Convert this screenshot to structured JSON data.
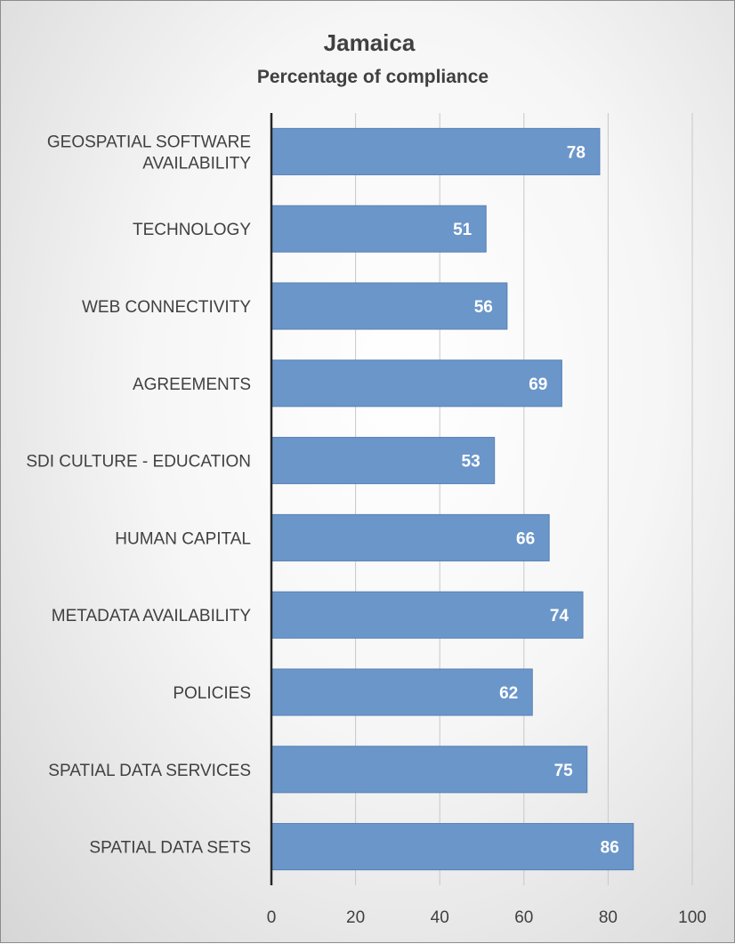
{
  "chart_data": {
    "type": "bar",
    "orientation": "horizontal",
    "title": "Jamaica",
    "subtitle": "Percentage of compliance",
    "categories": [
      "GEOSPATIAL SOFTWARE AVAILABILITY",
      "TECHNOLOGY",
      "WEB CONNECTIVITY",
      "AGREEMENTS",
      "SDI CULTURE - EDUCATION",
      "HUMAN CAPITAL",
      "METADATA AVAILABILITY",
      "POLICIES",
      "SPATIAL DATA SERVICES",
      "SPATIAL DATA SETS"
    ],
    "category_lines": [
      [
        "GEOSPATIAL SOFTWARE",
        "AVAILABILITY"
      ],
      [
        "TECHNOLOGY"
      ],
      [
        "WEB CONNECTIVITY"
      ],
      [
        "AGREEMENTS"
      ],
      [
        "SDI CULTURE - EDUCATION"
      ],
      [
        "HUMAN CAPITAL"
      ],
      [
        "METADATA AVAILABILITY"
      ],
      [
        "POLICIES"
      ],
      [
        "SPATIAL DATA SERVICES"
      ],
      [
        "SPATIAL DATA SETS"
      ]
    ],
    "values": [
      78,
      51,
      56,
      69,
      53,
      66,
      74,
      62,
      75,
      86
    ],
    "data_labels": [
      "78",
      "51",
      "56",
      "69",
      "53",
      "66",
      "74",
      "62",
      "75",
      "86"
    ],
    "xlim": [
      0,
      100
    ],
    "x_ticks": [
      0,
      20,
      40,
      60,
      80,
      100
    ],
    "x_tick_labels": [
      "0",
      "20",
      "40",
      "60",
      "80",
      "100"
    ],
    "xlabel": "",
    "ylabel": "",
    "grid": "vertical",
    "legend": "none",
    "colors": {
      "bar_fill": "#6b96c9",
      "bar_stroke": "#5680b6",
      "gridline": "#c8c8c8",
      "axis": "#262626",
      "text": "#404040"
    }
  }
}
